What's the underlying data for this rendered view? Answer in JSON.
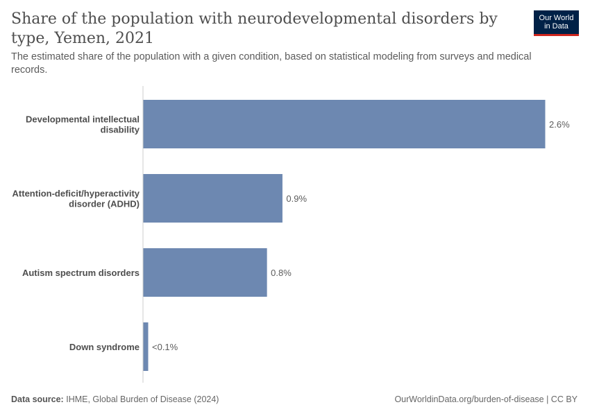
{
  "header": {
    "title": "Share of the population with neurodevelopmental disorders by type, Yemen, 2021",
    "subtitle": "The estimated share of the population with a given condition, based on statistical modeling from surveys and medical records.",
    "logo_line1": "Our World",
    "logo_line2": "in Data"
  },
  "footer": {
    "source_label": "Data source:",
    "source_text": "IHME, Global Burden of Disease (2024)",
    "url": "OurWorldinData.org/burden-of-disease | CC BY"
  },
  "colors": {
    "bar": "#6d88b1",
    "axis": "#cccccc",
    "label": "#4e4e4e",
    "value_label": "#5b5b5b",
    "logo_bg": "#002147",
    "logo_accent": "#ce261e"
  },
  "chart_data": {
    "type": "bar",
    "orientation": "horizontal",
    "categories": [
      [
        "Developmental intellectual",
        "disability"
      ],
      [
        "Attention-deficit/hyperactivity",
        "disorder (ADHD)"
      ],
      [
        "Autism spectrum disorders"
      ],
      [
        "Down syndrome"
      ]
    ],
    "values": [
      2.6,
      0.9,
      0.8,
      0.03
    ],
    "value_labels": [
      "2.6%",
      "0.9%",
      "0.8%",
      "<0.1%"
    ],
    "unit": "%",
    "xlim": [
      0,
      2.6
    ],
    "grid": false
  }
}
